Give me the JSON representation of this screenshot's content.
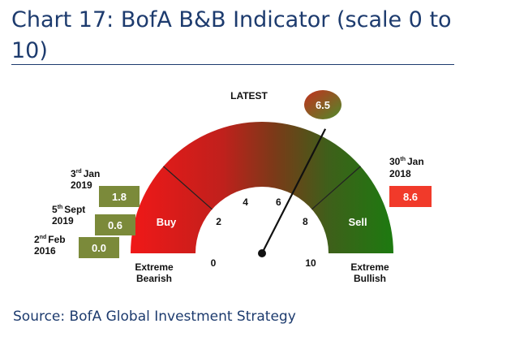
{
  "title": "Chart 17: BofA B&B Indicator (scale 0 to 10)",
  "source": "Source: BofA Global Investment Strategy",
  "chart_data": {
    "type": "gauge",
    "scale": [
      0,
      10
    ],
    "ticks": [
      "0",
      "2",
      "4",
      "6",
      "8",
      "10"
    ],
    "latest_label": "LATEST",
    "latest_value": 6.5,
    "latest_text": "6.5",
    "zones": {
      "buy": "Buy",
      "sell": "Sell"
    },
    "extremes": {
      "left": {
        "line1": "Extreme",
        "line2": "Bearish"
      },
      "right": {
        "line1": "Extreme",
        "line2": "Bullish"
      }
    },
    "history": [
      {
        "date_day": "3",
        "date_sup": "rd",
        "date_month": "Jan",
        "year": "2019",
        "value": "1.8"
      },
      {
        "date_day": "5",
        "date_sup": "th",
        "date_month": "Sept",
        "year": "2019",
        "value": "0.6"
      },
      {
        "date_day": "2",
        "date_sup": "nd",
        "date_month": "Feb",
        "year": "2016",
        "value": "0.0"
      }
    ],
    "peak": {
      "date_day": "30",
      "date_sup": "th",
      "date_month": "Jan",
      "year": "2018",
      "value": "8.6"
    },
    "colors": {
      "bearish": "#e01a1a",
      "bullish": "#1e6e10",
      "history_box": "#7b8a3a",
      "peak_box": "#f13a2a"
    }
  }
}
